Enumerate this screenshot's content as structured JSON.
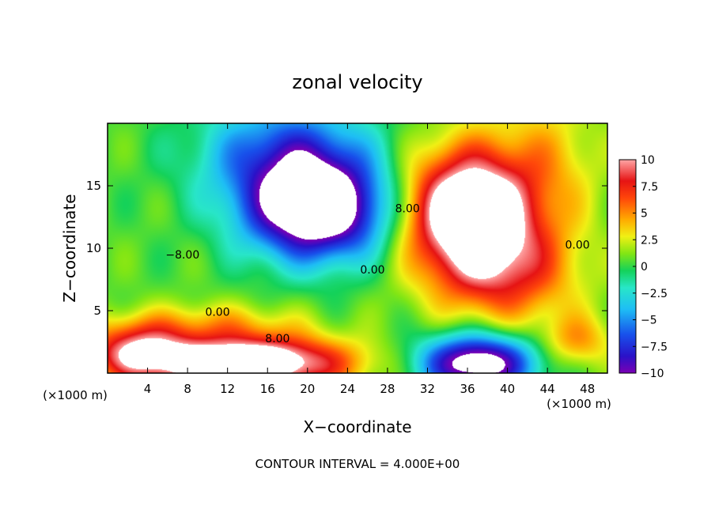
{
  "chart_data": {
    "type": "heatmap",
    "title": "zonal velocity",
    "xlabel": "X−coordinate",
    "ylabel": "Z−coordinate",
    "x_unit_label_left": "(×1000 m)",
    "x_unit_label_right": "(×1000 m)",
    "xlim": [
      0,
      50
    ],
    "ylim": [
      0,
      20
    ],
    "x_ticks": [
      4,
      8,
      12,
      16,
      20,
      24,
      28,
      32,
      36,
      40,
      44,
      48
    ],
    "x_tick_labels": [
      "4",
      "8",
      "12",
      "16",
      "20",
      "24",
      "28",
      "32",
      "36",
      "40",
      "44",
      "48"
    ],
    "y_ticks": [
      5,
      10,
      15
    ],
    "y_tick_labels": [
      "5",
      "10",
      "15"
    ],
    "colorbar": {
      "min": -10,
      "max": 10,
      "tick_values": [
        10,
        7.5,
        5,
        2.5,
        0,
        -2.5,
        -5,
        -7.5,
        -10
      ],
      "tick_labels": [
        "10",
        "7.5",
        "5",
        "2.5",
        "0",
        "−2.5",
        "−5",
        "−7.5",
        "−10"
      ]
    },
    "contour_labels": [
      {
        "text": "8.00",
        "x": 17.0,
        "y": 2.8
      },
      {
        "text": "0.00",
        "x": 11.0,
        "y": 4.9
      },
      {
        "text": "−8.00",
        "x": 7.5,
        "y": 9.5
      },
      {
        "text": "0.00",
        "x": 26.5,
        "y": 8.3
      },
      {
        "text": "8.00",
        "x": 30.0,
        "y": 13.2
      },
      {
        "text": "0.00",
        "x": 47.0,
        "y": 10.3
      }
    ],
    "footer": "CONTOUR INTERVAL = 4.000E+00",
    "field_features": [
      {
        "x": 21,
        "y": 13,
        "amp": -14,
        "sx": 5.0,
        "sy": 2.8
      },
      {
        "x": 36,
        "y": 13,
        "amp": 14,
        "sx": 4.5,
        "sy": 3.5
      },
      {
        "x": 14,
        "y": 0.8,
        "amp": 14,
        "sx": 7.0,
        "sy": 1.5
      },
      {
        "x": 3,
        "y": 1.8,
        "amp": 8,
        "sx": 3.5,
        "sy": 1.6
      },
      {
        "x": 37,
        "y": 0.8,
        "amp": -13,
        "sx": 4.0,
        "sy": 1.6
      },
      {
        "x": 47,
        "y": 2.5,
        "amp": 4,
        "sx": 2.5,
        "sy": 1.5
      },
      {
        "x": 40,
        "y": 8,
        "amp": 6,
        "sx": 5.0,
        "sy": 3.0
      },
      {
        "x": 11,
        "y": 4,
        "amp": 3,
        "sx": 6.0,
        "sy": 1.2
      },
      {
        "x": 18,
        "y": 17.5,
        "amp": -7,
        "sx": 6.0,
        "sy": 3.0
      },
      {
        "x": 44,
        "y": 17,
        "amp": 3,
        "sx": 4.0,
        "sy": 4.0
      }
    ],
    "field_background": 0.5
  }
}
